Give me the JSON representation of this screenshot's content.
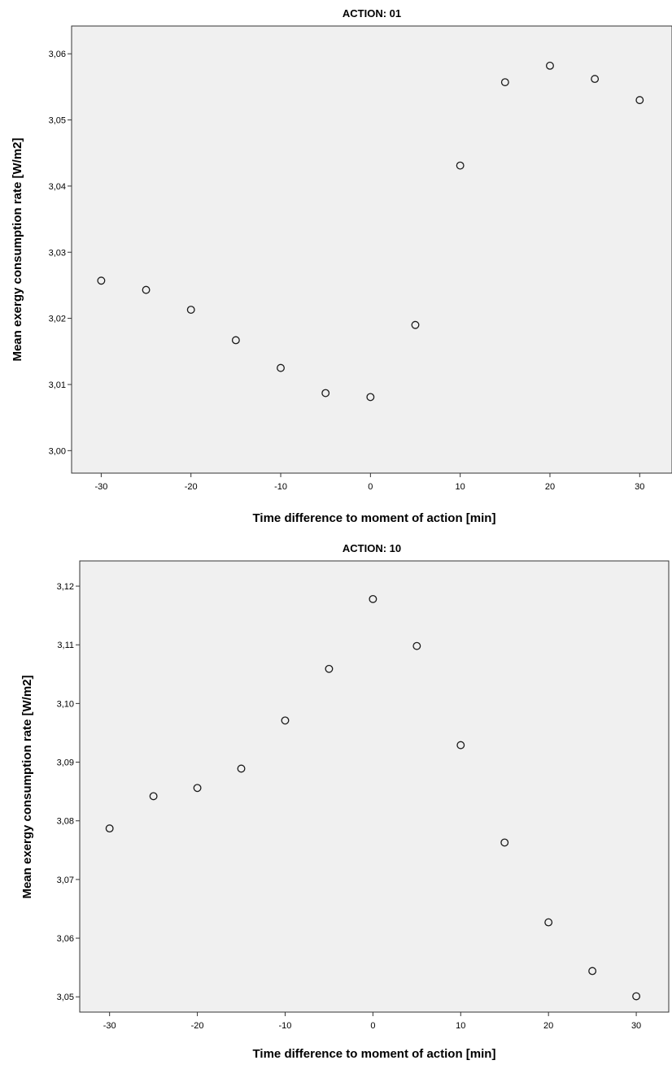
{
  "chart_data": [
    {
      "type": "scatter",
      "title": "ACTION: 01",
      "xlabel": "Time difference to moment of action [min]",
      "ylabel": "Mean exergy consumption rate [W/m2]",
      "x_ticks": [
        "-30",
        "-20",
        "-10",
        "0",
        "10",
        "20",
        "30"
      ],
      "x_tick_values": [
        -30,
        -20,
        -10,
        0,
        10,
        20,
        30
      ],
      "y_ticks": [
        "3,00",
        "3,01",
        "3,02",
        "3,03",
        "3,04",
        "3,05",
        "3,06"
      ],
      "y_tick_values": [
        3.0,
        3.01,
        3.02,
        3.03,
        3.04,
        3.05,
        3.06
      ],
      "xlim": [
        -33.3,
        33.6
      ],
      "ylim": [
        2.9966,
        3.0642
      ],
      "grid": false,
      "points": [
        {
          "x": -30,
          "y": 3.0257
        },
        {
          "x": -25,
          "y": 3.0243
        },
        {
          "x": -20,
          "y": 3.0213
        },
        {
          "x": -15,
          "y": 3.0167
        },
        {
          "x": -10,
          "y": 3.0125
        },
        {
          "x": -5,
          "y": 3.0087
        },
        {
          "x": 0,
          "y": 3.0081
        },
        {
          "x": 5,
          "y": 3.019
        },
        {
          "x": 10,
          "y": 3.0431
        },
        {
          "x": 15,
          "y": 3.0557
        },
        {
          "x": 20,
          "y": 3.0582
        },
        {
          "x": 25,
          "y": 3.0562
        },
        {
          "x": 30,
          "y": 3.053
        }
      ]
    },
    {
      "type": "scatter",
      "title": "ACTION: 10",
      "xlabel": "Time difference to moment of action [min]",
      "ylabel": "Mean exergy consumption rate [W/m2]",
      "x_ticks": [
        "-30",
        "-20",
        "-10",
        "0",
        "10",
        "20",
        "30"
      ],
      "x_tick_values": [
        -30,
        -20,
        -10,
        0,
        10,
        20,
        30
      ],
      "y_ticks": [
        "3,05",
        "3,06",
        "3,07",
        "3,08",
        "3,09",
        "3,10",
        "3,11",
        "3,12"
      ],
      "y_tick_values": [
        3.05,
        3.06,
        3.07,
        3.08,
        3.09,
        3.1,
        3.11,
        3.12
      ],
      "xlim": [
        -33.4,
        33.7
      ],
      "ylim": [
        3.0474,
        3.1243
      ],
      "grid": false,
      "points": [
        {
          "x": -30,
          "y": 3.0787
        },
        {
          "x": -25,
          "y": 3.0842
        },
        {
          "x": -20,
          "y": 3.0856
        },
        {
          "x": -15,
          "y": 3.0889
        },
        {
          "x": -10,
          "y": 3.0971
        },
        {
          "x": -5,
          "y": 3.1059
        },
        {
          "x": 0,
          "y": 3.1178
        },
        {
          "x": 5,
          "y": 3.1098
        },
        {
          "x": 10,
          "y": 3.0929
        },
        {
          "x": 15,
          "y": 3.0763
        },
        {
          "x": 20,
          "y": 3.0627
        },
        {
          "x": 25,
          "y": 3.0544
        },
        {
          "x": 30,
          "y": 3.0501
        }
      ]
    }
  ]
}
